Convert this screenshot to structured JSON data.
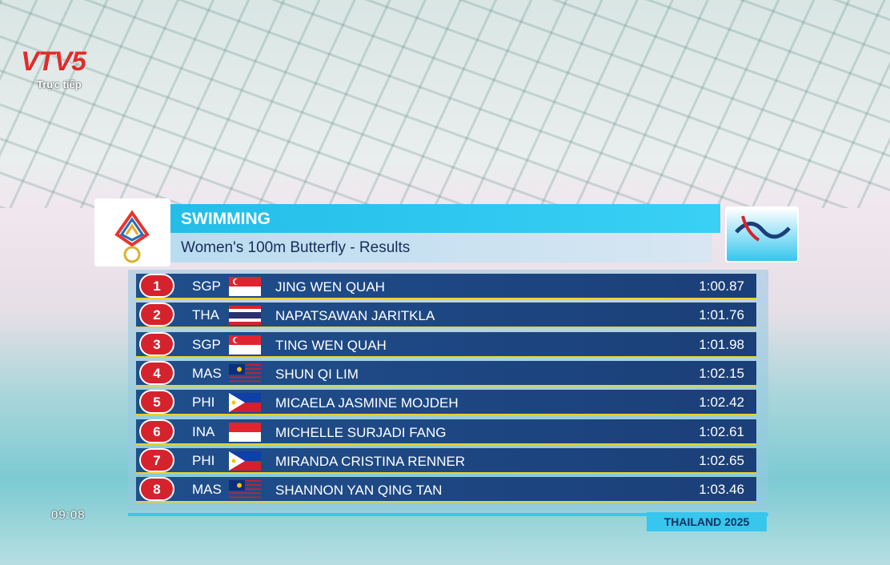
{
  "channel": {
    "logo": "VTV5",
    "status": "Trực tiếp",
    "clock": "09:08"
  },
  "header": {
    "sport": "SWIMMING",
    "event": "Women's 100m Butterfly - Results"
  },
  "table": {
    "rows": [
      {
        "rank": 1,
        "country": "SGP",
        "name": "JING WEN QUAH",
        "time": "1:00.87"
      },
      {
        "rank": 2,
        "country": "THA",
        "name": "NAPATSAWAN JARITKLA",
        "time": "1:01.76"
      },
      {
        "rank": 3,
        "country": "SGP",
        "name": "TING WEN QUAH",
        "time": "1:01.98"
      },
      {
        "rank": 4,
        "country": "MAS",
        "name": "SHUN QI LIM",
        "time": "1:02.15"
      },
      {
        "rank": 5,
        "country": "PHI",
        "name": "MICAELA JASMINE MOJDEH",
        "time": "1:02.42"
      },
      {
        "rank": 6,
        "country": "INA",
        "name": "MICHELLE SURJADI FANG",
        "time": "1:02.61"
      },
      {
        "rank": 7,
        "country": "PHI",
        "name": "MIRANDA CRISTINA RENNER",
        "time": "1:02.65"
      },
      {
        "rank": 8,
        "country": "MAS",
        "name": "SHANNON YAN QING TAN",
        "time": "1:03.46"
      }
    ]
  },
  "footer": {
    "tag": "THAILAND 2025"
  }
}
